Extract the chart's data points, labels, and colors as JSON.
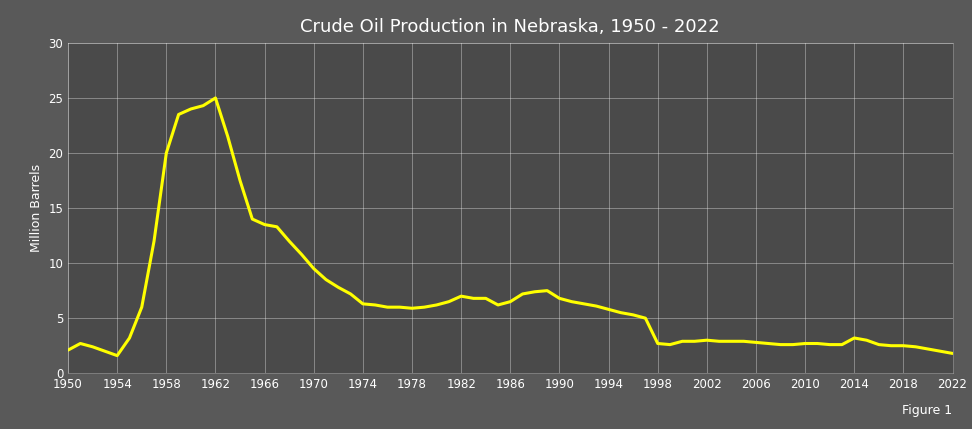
{
  "title": "Crude Oil Production in Nebraska, 1950 - 2022",
  "ylabel": "Million Barrels",
  "figure1_label": "Figure 1",
  "outer_background": "#595959",
  "plot_background": "#4a4a4a",
  "line_color": "#ffff00",
  "line_width": 2.2,
  "title_color": "#ffffff",
  "label_color": "#ffffff",
  "tick_color": "#ffffff",
  "grid_color": "#ffffff",
  "grid_alpha": 0.4,
  "ylim": [
    0,
    30
  ],
  "yticks": [
    0,
    5,
    10,
    15,
    20,
    25,
    30
  ],
  "xticks": [
    1950,
    1954,
    1958,
    1962,
    1966,
    1970,
    1974,
    1978,
    1982,
    1986,
    1990,
    1994,
    1998,
    2002,
    2006,
    2010,
    2014,
    2018,
    2022
  ],
  "years": [
    1950,
    1951,
    1952,
    1953,
    1954,
    1955,
    1956,
    1957,
    1958,
    1959,
    1960,
    1961,
    1962,
    1963,
    1964,
    1965,
    1966,
    1967,
    1968,
    1969,
    1970,
    1971,
    1972,
    1973,
    1974,
    1975,
    1976,
    1977,
    1978,
    1979,
    1980,
    1981,
    1982,
    1983,
    1984,
    1985,
    1986,
    1987,
    1988,
    1989,
    1990,
    1991,
    1992,
    1993,
    1994,
    1995,
    1996,
    1997,
    1998,
    1999,
    2000,
    2001,
    2002,
    2003,
    2004,
    2005,
    2006,
    2007,
    2008,
    2009,
    2010,
    2011,
    2012,
    2013,
    2014,
    2015,
    2016,
    2017,
    2018,
    2019,
    2020,
    2021,
    2022
  ],
  "values": [
    2.1,
    2.7,
    2.4,
    2.0,
    1.6,
    3.2,
    6.0,
    12.0,
    20.0,
    23.5,
    24.0,
    24.3,
    25.0,
    21.5,
    17.5,
    14.0,
    13.5,
    13.3,
    12.0,
    10.8,
    9.5,
    8.5,
    7.8,
    7.2,
    6.3,
    6.2,
    6.0,
    6.0,
    5.9,
    6.0,
    6.2,
    6.5,
    7.0,
    6.8,
    6.8,
    6.2,
    6.5,
    7.2,
    7.4,
    7.5,
    6.8,
    6.5,
    6.3,
    6.1,
    5.8,
    5.5,
    5.3,
    5.0,
    2.7,
    2.6,
    2.9,
    2.9,
    3.0,
    2.9,
    2.9,
    2.9,
    2.8,
    2.7,
    2.6,
    2.6,
    2.7,
    2.7,
    2.6,
    2.6,
    3.2,
    3.0,
    2.6,
    2.5,
    2.5,
    2.4,
    2.2,
    2.0,
    1.8
  ]
}
